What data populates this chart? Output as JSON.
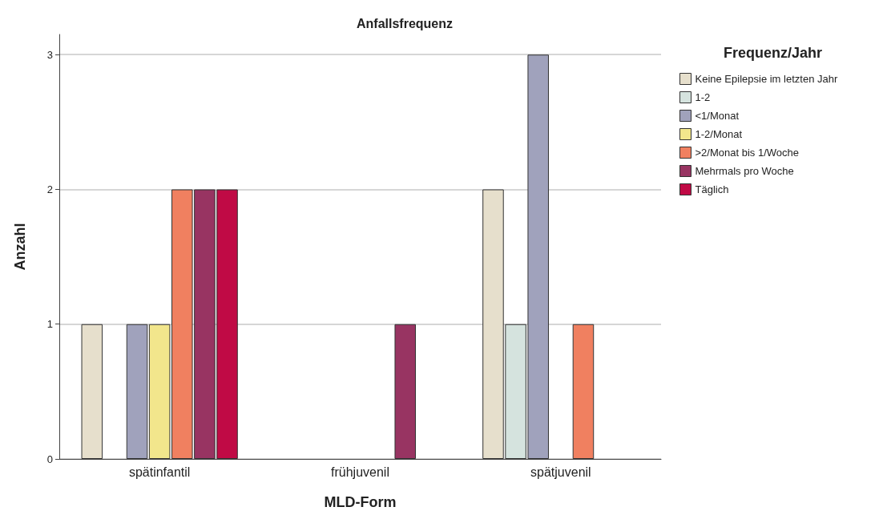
{
  "chart_data": {
    "type": "bar",
    "title": "Anfallsfrequenz",
    "xlabel": "MLD-Form",
    "ylabel": "Anzahl",
    "legend_title": "Frequenz/Jahr",
    "categories": [
      "spätinfantil",
      "frühjuvenil",
      "spätjuvenil"
    ],
    "series": [
      {
        "name": "Keine Epilepsie im letzten Jahr",
        "color": "#e6dfcc",
        "values": [
          1,
          null,
          2
        ]
      },
      {
        "name": "1-2",
        "color": "#d5e3de",
        "values": [
          null,
          null,
          1
        ]
      },
      {
        "name": "<1/Monat",
        "color": "#a0a2bc",
        "values": [
          1,
          null,
          3
        ]
      },
      {
        "name": "1-2/Monat",
        "color": "#f2e68c",
        "values": [
          1,
          null,
          null
        ]
      },
      {
        "name": ">2/Monat bis 1/Woche",
        "color": "#f08060",
        "values": [
          2,
          null,
          1
        ]
      },
      {
        "name": "Mehrmals pro Woche",
        "color": "#983462",
        "values": [
          2,
          1,
          null
        ]
      },
      {
        "name": "Täglich",
        "color": "#c00a45",
        "values": [
          2,
          null,
          null
        ]
      }
    ],
    "ylim": [
      0,
      3.15
    ],
    "yticks": [
      0,
      1,
      2,
      3
    ],
    "grid": "y",
    "legend": "top right"
  }
}
